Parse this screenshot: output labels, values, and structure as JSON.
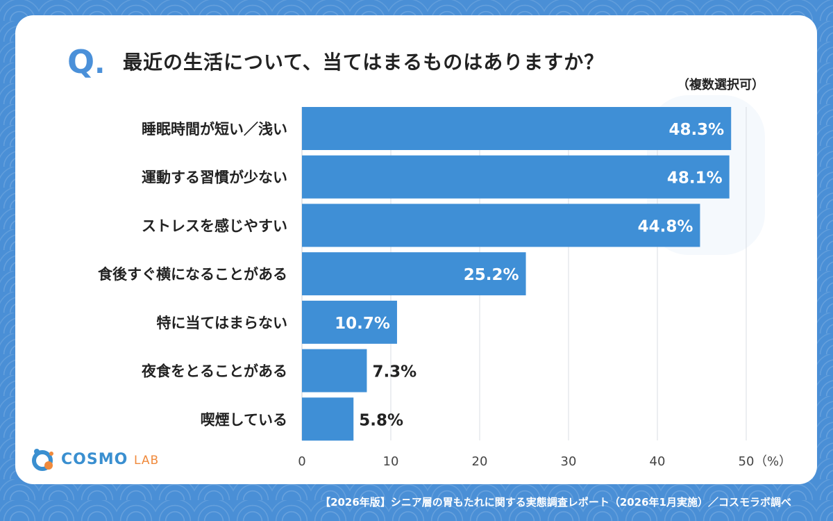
{
  "question": {
    "mark": "Q",
    "mark_dot": ".",
    "title": "最近の生活について、当てはまるものはありますか？",
    "note": "（複数選択可）"
  },
  "chart_data": {
    "type": "bar",
    "orientation": "horizontal",
    "categories": [
      "睡眠時間が短い／浅い",
      "運動する習慣が少ない",
      "ストレスを感じやすい",
      "食後すぐ横になることがある",
      "特に当てはまらない",
      "夜食をとることがある",
      "喫煙している"
    ],
    "values": [
      48.3,
      48.1,
      44.8,
      25.2,
      10.7,
      7.3,
      5.8
    ],
    "value_labels": [
      "48.3%",
      "48.1%",
      "44.8%",
      "25.2%",
      "10.7%",
      "7.3%",
      "5.8%"
    ],
    "xlim": [
      0,
      50
    ],
    "xticks": [
      0,
      10,
      20,
      30,
      40,
      50
    ],
    "x_unit": "（%）",
    "grid": true,
    "bar_color": "#3f8fd6"
  },
  "logo": {
    "name": "COSMO",
    "sub": "LAB",
    "colors": {
      "primary": "#3a8fd0",
      "accent": "#f08a3c"
    }
  },
  "footer": "【2026年版】シニア層の胃もたれに関する実態調査レポート（2026年1月実施）／コスモラボ調べ"
}
